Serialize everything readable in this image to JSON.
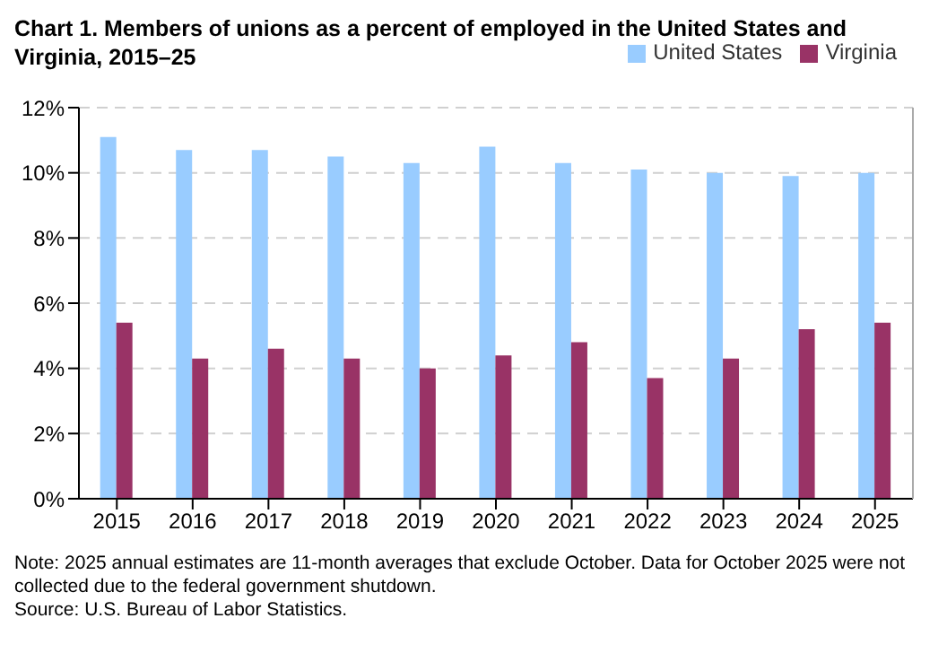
{
  "chart_data": {
    "type": "bar",
    "title": "Chart 1. Members of unions as a percent of employed in the United  States and Virginia, 2015–25",
    "categories": [
      "2015",
      "2016",
      "2017",
      "2018",
      "2019",
      "2020",
      "2021",
      "2022",
      "2023",
      "2024",
      "2025"
    ],
    "series": [
      {
        "name": "United States",
        "color": "#99ccff",
        "values": [
          11.1,
          10.7,
          10.7,
          10.5,
          10.3,
          10.8,
          10.3,
          10.1,
          10.0,
          9.9,
          10.0
        ]
      },
      {
        "name": "Virginia",
        "color": "#993366",
        "values": [
          5.4,
          4.3,
          4.6,
          4.3,
          4.0,
          4.4,
          4.8,
          3.7,
          4.3,
          5.2,
          5.4
        ]
      }
    ],
    "ylim": [
      0,
      12
    ],
    "yticks": [
      {
        "value": 0,
        "label": "0%"
      },
      {
        "value": 2,
        "label": "2%"
      },
      {
        "value": 4,
        "label": "4%"
      },
      {
        "value": 6,
        "label": "6%"
      },
      {
        "value": 8,
        "label": "8%"
      },
      {
        "value": 10,
        "label": "10%"
      },
      {
        "value": 12,
        "label": "12%"
      }
    ],
    "grid": "y",
    "legend": "top right",
    "annotations": [
      "Note: 2025 annual estimates are 11-month averages that exclude October. Data for October 2025 were not collected due to the federal government shutdown.",
      "Source: U.S. Bureau of Labor Statistics."
    ]
  }
}
